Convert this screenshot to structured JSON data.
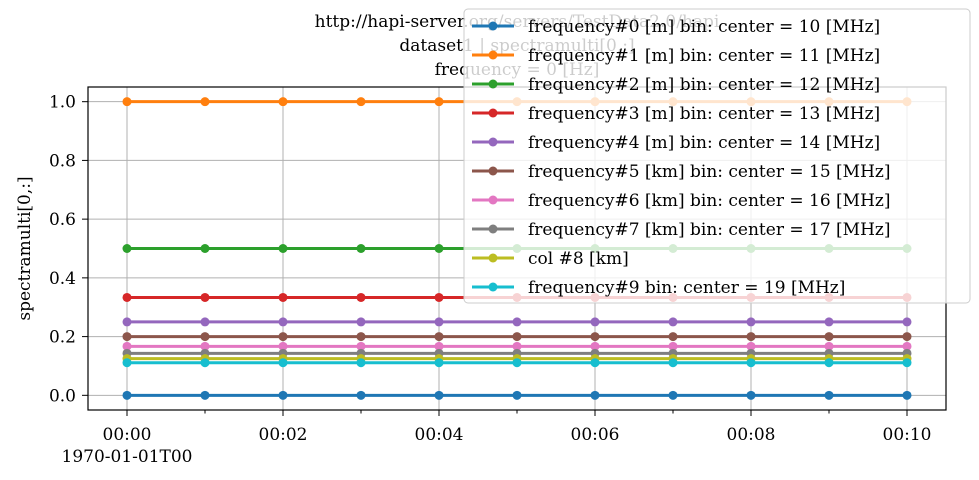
{
  "chart_data": {
    "type": "line",
    "title_lines": [
      "http://hapi-server.org/servers/TestData2.0/hapi",
      "dataset1 | spectramulti[0,:]",
      "frequency = 0 [Hz]"
    ],
    "xlabel": "",
    "ylabel": "spectramulti[0,:]",
    "x_ticks": [
      "00:00",
      "00:02",
      "00:04",
      "00:06",
      "00:08",
      "00:10"
    ],
    "x_offset_label": "1970-01-01T00",
    "x_range_minutes": [
      -0.5,
      10.5
    ],
    "x_minutes": [
      0,
      1,
      2,
      3,
      4,
      5,
      6,
      7,
      8,
      9,
      10
    ],
    "ylim": [
      -0.05,
      1.05
    ],
    "y_ticks": [
      "0.0",
      "0.2",
      "0.4",
      "0.6",
      "0.8",
      "1.0"
    ],
    "grid": true,
    "legend_position": "top-right",
    "series": [
      {
        "name": "frequency#0 [m] bin:  center = 10 [MHz]",
        "color": "#1f77b4",
        "value": 0.0
      },
      {
        "name": "frequency#1 [m] bin:  center = 11 [MHz]",
        "color": "#ff7f0e",
        "value": 1.0
      },
      {
        "name": "frequency#2 [m] bin:  center = 12 [MHz]",
        "color": "#2ca02c",
        "value": 0.5
      },
      {
        "name": "frequency#3 [m] bin:  center = 13 [MHz]",
        "color": "#d62728",
        "value": 0.3333
      },
      {
        "name": "frequency#4 [m] bin:  center = 14 [MHz]",
        "color": "#9467bd",
        "value": 0.25
      },
      {
        "name": "frequency#5 [km] bin:  center = 15 [MHz]",
        "color": "#8c564b",
        "value": 0.2
      },
      {
        "name": "frequency#6 [km] bin:  center = 16 [MHz]",
        "color": "#e377c2",
        "value": 0.1667
      },
      {
        "name": "frequency#7 [km] bin:  center = 17 [MHz]",
        "color": "#7f7f7f",
        "value": 0.1429
      },
      {
        "name": "col #8 [km]",
        "color": "#bcbd22",
        "value": 0.125
      },
      {
        "name": "frequency#9 bin:  center = 19 [MHz]",
        "color": "#17becf",
        "value": 0.1111
      }
    ]
  }
}
